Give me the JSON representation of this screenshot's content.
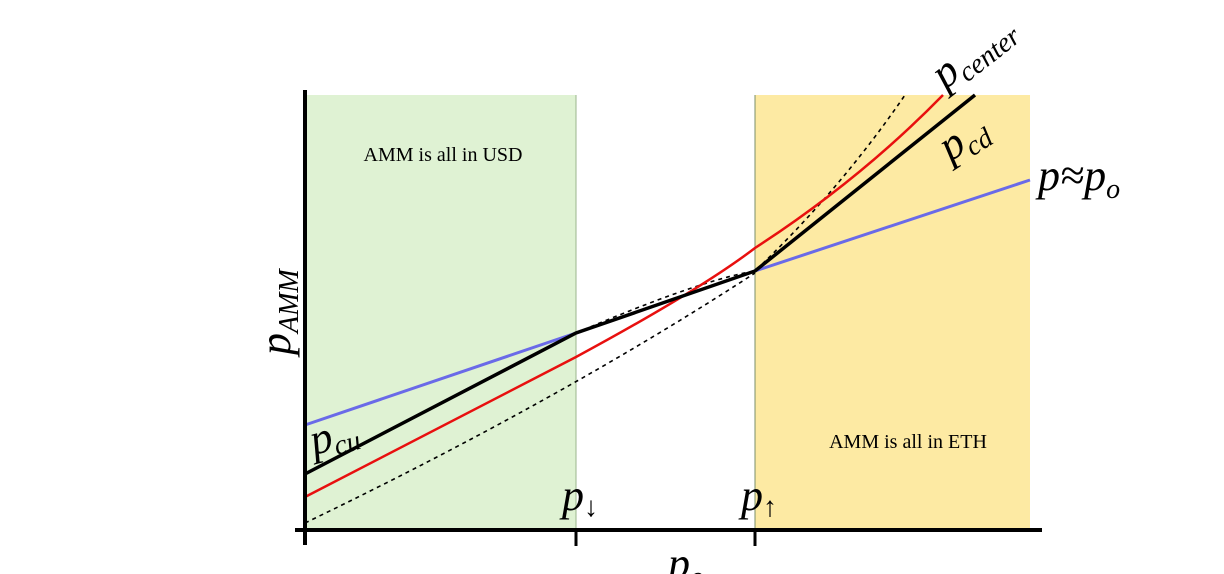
{
  "regions": [
    {
      "label": "AMM is all in USD"
    },
    {
      "label": "AMM is all in ETH"
    }
  ],
  "curve_labels": [
    {
      "main": "p",
      "sub": "center"
    },
    {
      "main": "p",
      "sub": "cd"
    },
    {
      "main": "p≈p",
      "sub": "o"
    },
    {
      "main": "p",
      "sub": "cu"
    }
  ],
  "x_ticks": [
    {
      "main": "p",
      "sub": "↓"
    },
    {
      "main": "p",
      "sub": "↑"
    }
  ],
  "axes": {
    "y_label": {
      "main": "p",
      "sub": "AMM"
    },
    "x_label": {
      "main": "p",
      "sub": "o"
    }
  }
}
